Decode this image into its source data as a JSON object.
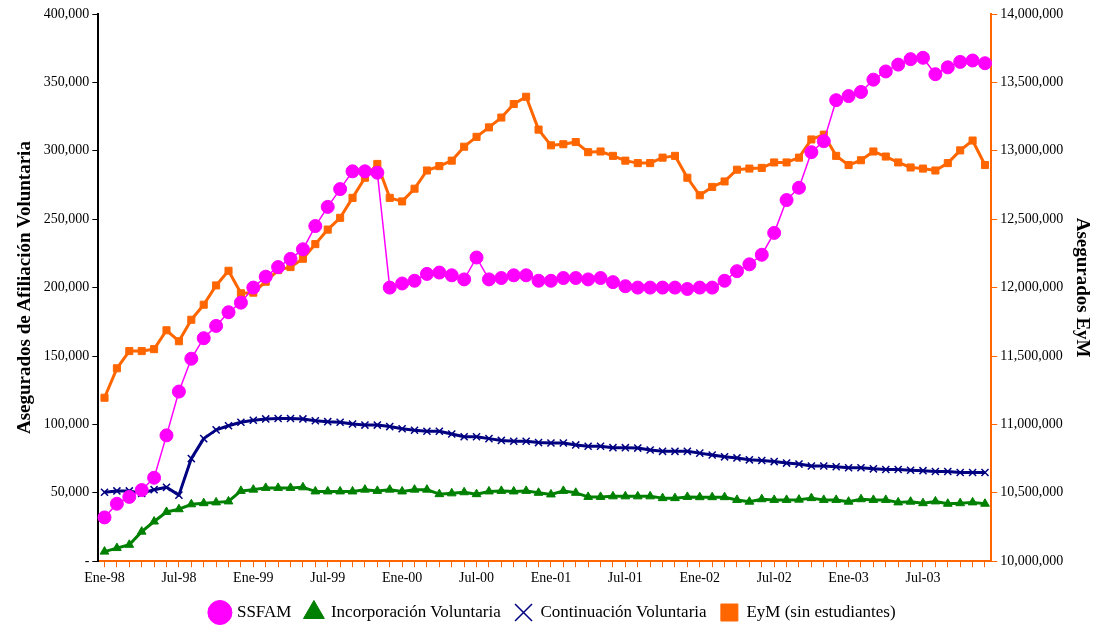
{
  "chart_data": {
    "type": "line",
    "ylabel": "Asegurados de Afiliación Voluntaria",
    "y2label": "Asegurados EyM",
    "categories": [
      "Ene-98",
      null,
      null,
      null,
      null,
      null,
      "Jul-98",
      null,
      null,
      null,
      null,
      null,
      "Ene-99",
      null,
      null,
      null,
      null,
      null,
      "Jul-99",
      null,
      null,
      null,
      null,
      null,
      "Ene-00",
      null,
      null,
      null,
      null,
      null,
      "Jul-00",
      null,
      null,
      null,
      null,
      null,
      "Ene-01",
      null,
      null,
      null,
      null,
      null,
      "Jul-01",
      null,
      null,
      null,
      null,
      null,
      "Ene-02",
      null,
      null,
      null,
      null,
      null,
      "Jul-02",
      null,
      null,
      null,
      null,
      null,
      "Ene-03",
      null,
      null,
      null,
      null,
      null,
      "Jul-03",
      null,
      null,
      null,
      null,
      null
    ],
    "ylim": [
      0,
      400000
    ],
    "yticks": [
      {
        "value": 0,
        "label": "-"
      },
      {
        "value": 50000,
        "label": "50,000"
      },
      {
        "value": 100000,
        "label": "100,000"
      },
      {
        "value": 150000,
        "label": "150,000"
      },
      {
        "value": 200000,
        "label": "200,000"
      },
      {
        "value": 250000,
        "label": "250,000"
      },
      {
        "value": 300000,
        "label": "300,000"
      },
      {
        "value": 350000,
        "label": "350,000"
      },
      {
        "value": 400000,
        "label": "400,000"
      }
    ],
    "y2lim": [
      10000000,
      14000000
    ],
    "y2ticks": [
      {
        "value": 10000000,
        "label": "10,000,000"
      },
      {
        "value": 10500000,
        "label": "10,500,000"
      },
      {
        "value": 11000000,
        "label": "11,000,000"
      },
      {
        "value": 11500000,
        "label": "11,500,000"
      },
      {
        "value": 12000000,
        "label": "12,000,000"
      },
      {
        "value": 12500000,
        "label": "12,500,000"
      },
      {
        "value": 13000000,
        "label": "13,000,000"
      },
      {
        "value": 13500000,
        "label": "13,500,000"
      },
      {
        "value": 14000000,
        "label": "14,000,000"
      }
    ],
    "grid": false,
    "legend": "bottom",
    "series": [
      {
        "name": "SSFAM",
        "color": "#ff00ff",
        "marker": "circle",
        "values": [
          32000,
          42000,
          47000,
          52000,
          61000,
          92000,
          124000,
          148000,
          163000,
          172000,
          182000,
          189000,
          200000,
          208000,
          215000,
          221000,
          228000,
          245000,
          259000,
          272000,
          285000,
          285000,
          284000,
          200000,
          203000,
          205000,
          210000,
          211000,
          209000,
          206000,
          222000,
          206000,
          207000,
          209000,
          209000,
          205000,
          205000,
          207000,
          207000,
          206000,
          207000,
          204000,
          201000,
          200000,
          200000,
          200000,
          200000,
          199000,
          200000,
          200000,
          205000,
          212000,
          217000,
          224000,
          240000,
          264000,
          273000,
          299000,
          307000,
          337000,
          340000,
          343000,
          352000,
          358000,
          363000,
          367000,
          368000,
          356000,
          361000,
          365000,
          366000,
          364000
        ]
      },
      {
        "name": "Incorporación Voluntaria",
        "color": "#008000",
        "marker": "triangle",
        "values": [
          7000,
          9600,
          12000,
          21600,
          29000,
          36000,
          38000,
          41600,
          42400,
          43000,
          43700,
          51400,
          52300,
          53600,
          53600,
          53600,
          54000,
          51000,
          51000,
          51000,
          51000,
          52300,
          51400,
          52300,
          51000,
          52300,
          52300,
          49000,
          49600,
          50400,
          49000,
          51000,
          51400,
          51000,
          51400,
          50000,
          48800,
          51400,
          50000,
          47000,
          47000,
          47400,
          47400,
          47400,
          47400,
          46100,
          46100,
          47000,
          46800,
          46800,
          46800,
          44800,
          43500,
          45300,
          44800,
          44800,
          45000,
          46100,
          44800,
          44800,
          43500,
          45300,
          44800,
          44800,
          43000,
          43500,
          42400,
          43700,
          42000,
          42400,
          43000,
          42000
        ]
      },
      {
        "name": "Continuación Voluntaria",
        "color": "#000080",
        "marker": "cross",
        "values": [
          50400,
          51400,
          51400,
          49600,
          52300,
          54000,
          48300,
          75000,
          89600,
          96000,
          99000,
          101600,
          103000,
          104000,
          104300,
          104300,
          104000,
          102700,
          102000,
          101600,
          100300,
          99500,
          99500,
          98400,
          96800,
          95700,
          95000,
          95000,
          93000,
          91000,
          91000,
          89600,
          88300,
          87700,
          87700,
          86700,
          86400,
          86400,
          85000,
          84000,
          84000,
          83000,
          83000,
          82700,
          81300,
          80300,
          80300,
          80300,
          79000,
          77600,
          76300,
          75500,
          74100,
          73600,
          72800,
          71700,
          71000,
          69600,
          69600,
          69000,
          68300,
          68300,
          67500,
          67000,
          67000,
          66500,
          66200,
          65600,
          65600,
          64800,
          64800,
          64800
        ]
      },
      {
        "name": "EyM (sin estudiantes)",
        "color": "#ff6600",
        "marker": "square",
        "axis": "y2",
        "values": [
          11195000,
          11410000,
          11536000,
          11536000,
          11550000,
          11688000,
          11608000,
          11765000,
          11875000,
          12016000,
          12123000,
          11958000,
          11963000,
          12043000,
          12128000,
          12150000,
          12211000,
          12318000,
          12424000,
          12510000,
          12656000,
          12803000,
          12904000,
          12656000,
          12630000,
          12723000,
          12856000,
          12888000,
          12928000,
          13030000,
          13102000,
          13171000,
          13243000,
          13342000,
          13395000,
          13155000,
          13040000,
          13048000,
          13064000,
          12990000,
          12995000,
          12963000,
          12928000,
          12910000,
          12910000,
          12950000,
          12963000,
          12803000,
          12675000,
          12736000,
          12776000,
          12862000,
          12870000,
          12875000,
          12915000,
          12915000,
          12950000,
          13083000,
          13118000,
          12963000,
          12896000,
          12931000,
          12995000,
          12958000,
          12915000,
          12878000,
          12870000,
          12856000,
          12910000,
          13003000,
          13075000,
          12896000
        ]
      }
    ]
  }
}
